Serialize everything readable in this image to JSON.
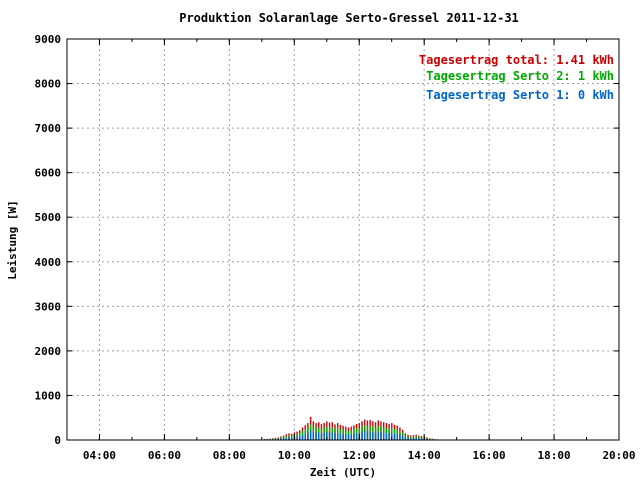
{
  "chart_data": {
    "type": "bar",
    "title": "Produktion Solaranlage Serto-Gressel 2011-12-31",
    "xlabel": "Zeit (UTC)",
    "ylabel": "Leistung [W]",
    "xlim": [
      "03:00",
      "20:00"
    ],
    "ylim": [
      0,
      9000
    ],
    "grid": true,
    "x_ticks": [
      "04:00",
      "06:00",
      "08:00",
      "10:00",
      "12:00",
      "14:00",
      "16:00",
      "18:00",
      "20:00"
    ],
    "y_ticks": [
      "0",
      "1000",
      "2000",
      "3000",
      "4000",
      "5000",
      "6000",
      "7000",
      "8000",
      "9000"
    ],
    "legend_position": "top-right",
    "legend": [
      {
        "text": "Tagesertrag total: 1.41 kWh",
        "color": "#cc0000"
      },
      {
        "text": "Tagesertrag Serto 2: 1 kWh",
        "color": "#00aa00"
      },
      {
        "text": "Tagesertrag Serto 1: 0 kWh",
        "color": "#0066cc"
      }
    ],
    "x": [
      "09:05",
      "09:10",
      "09:15",
      "09:20",
      "09:25",
      "09:30",
      "09:35",
      "09:40",
      "09:45",
      "09:50",
      "09:55",
      "10:00",
      "10:05",
      "10:10",
      "10:15",
      "10:20",
      "10:25",
      "10:30",
      "10:35",
      "10:40",
      "10:45",
      "10:50",
      "10:55",
      "11:00",
      "11:05",
      "11:10",
      "11:15",
      "11:20",
      "11:25",
      "11:30",
      "11:35",
      "11:40",
      "11:45",
      "11:50",
      "11:55",
      "12:00",
      "12:05",
      "12:10",
      "12:15",
      "12:20",
      "12:25",
      "12:30",
      "12:35",
      "12:40",
      "12:45",
      "12:50",
      "12:55",
      "13:00",
      "13:05",
      "13:10",
      "13:15",
      "13:20",
      "13:25",
      "13:30",
      "13:35",
      "13:40",
      "13:45",
      "13:50",
      "13:55",
      "14:00",
      "14:05",
      "14:10",
      "14:15",
      "14:20",
      "14:25",
      "14:30",
      "14:35",
      "14:40",
      "14:45",
      "14:50",
      "14:55"
    ],
    "series": [
      {
        "name": "total",
        "color": "#cc0000",
        "values": [
          20,
          25,
          30,
          40,
          50,
          60,
          80,
          100,
          130,
          150,
          140,
          170,
          190,
          220,
          280,
          330,
          380,
          520,
          420,
          380,
          400,
          360,
          380,
          420,
          390,
          400,
          350,
          380,
          340,
          320,
          300,
          280,
          300,
          330,
          360,
          380,
          420,
          460,
          440,
          450,
          420,
          400,
          440,
          420,
          400,
          380,
          360,
          380,
          340,
          320,
          280,
          230,
          150,
          120,
          100,
          110,
          120,
          100,
          90,
          80,
          60,
          40,
          30,
          20,
          15,
          10,
          10,
          5,
          5,
          5,
          5
        ]
      },
      {
        "name": "Serto 2",
        "color": "#00aa00",
        "values": [
          12,
          15,
          20,
          25,
          32,
          40,
          55,
          70,
          90,
          105,
          95,
          120,
          135,
          160,
          200,
          240,
          270,
          360,
          300,
          270,
          280,
          260,
          270,
          300,
          280,
          285,
          250,
          270,
          245,
          230,
          215,
          200,
          215,
          235,
          260,
          270,
          300,
          330,
          315,
          320,
          300,
          285,
          310,
          300,
          285,
          270,
          255,
          270,
          240,
          225,
          200,
          165,
          105,
          85,
          70,
          80,
          85,
          70,
          65,
          55,
          42,
          28,
          20,
          14,
          10,
          7,
          6,
          4,
          3,
          3,
          3
        ]
      },
      {
        "name": "Serto 1",
        "color": "#0066cc",
        "values": [
          8,
          10,
          12,
          15,
          20,
          25,
          30,
          40,
          50,
          60,
          55,
          70,
          80,
          90,
          110,
          140,
          160,
          220,
          180,
          160,
          170,
          150,
          160,
          180,
          170,
          170,
          150,
          160,
          145,
          135,
          125,
          120,
          125,
          140,
          150,
          160,
          180,
          200,
          190,
          195,
          180,
          170,
          185,
          180,
          170,
          160,
          150,
          160,
          145,
          135,
          120,
          100,
          60,
          50,
          40,
          45,
          50,
          40,
          38,
          32,
          25,
          16,
          12,
          8,
          6,
          4,
          4,
          2,
          2,
          2,
          2
        ]
      }
    ]
  }
}
